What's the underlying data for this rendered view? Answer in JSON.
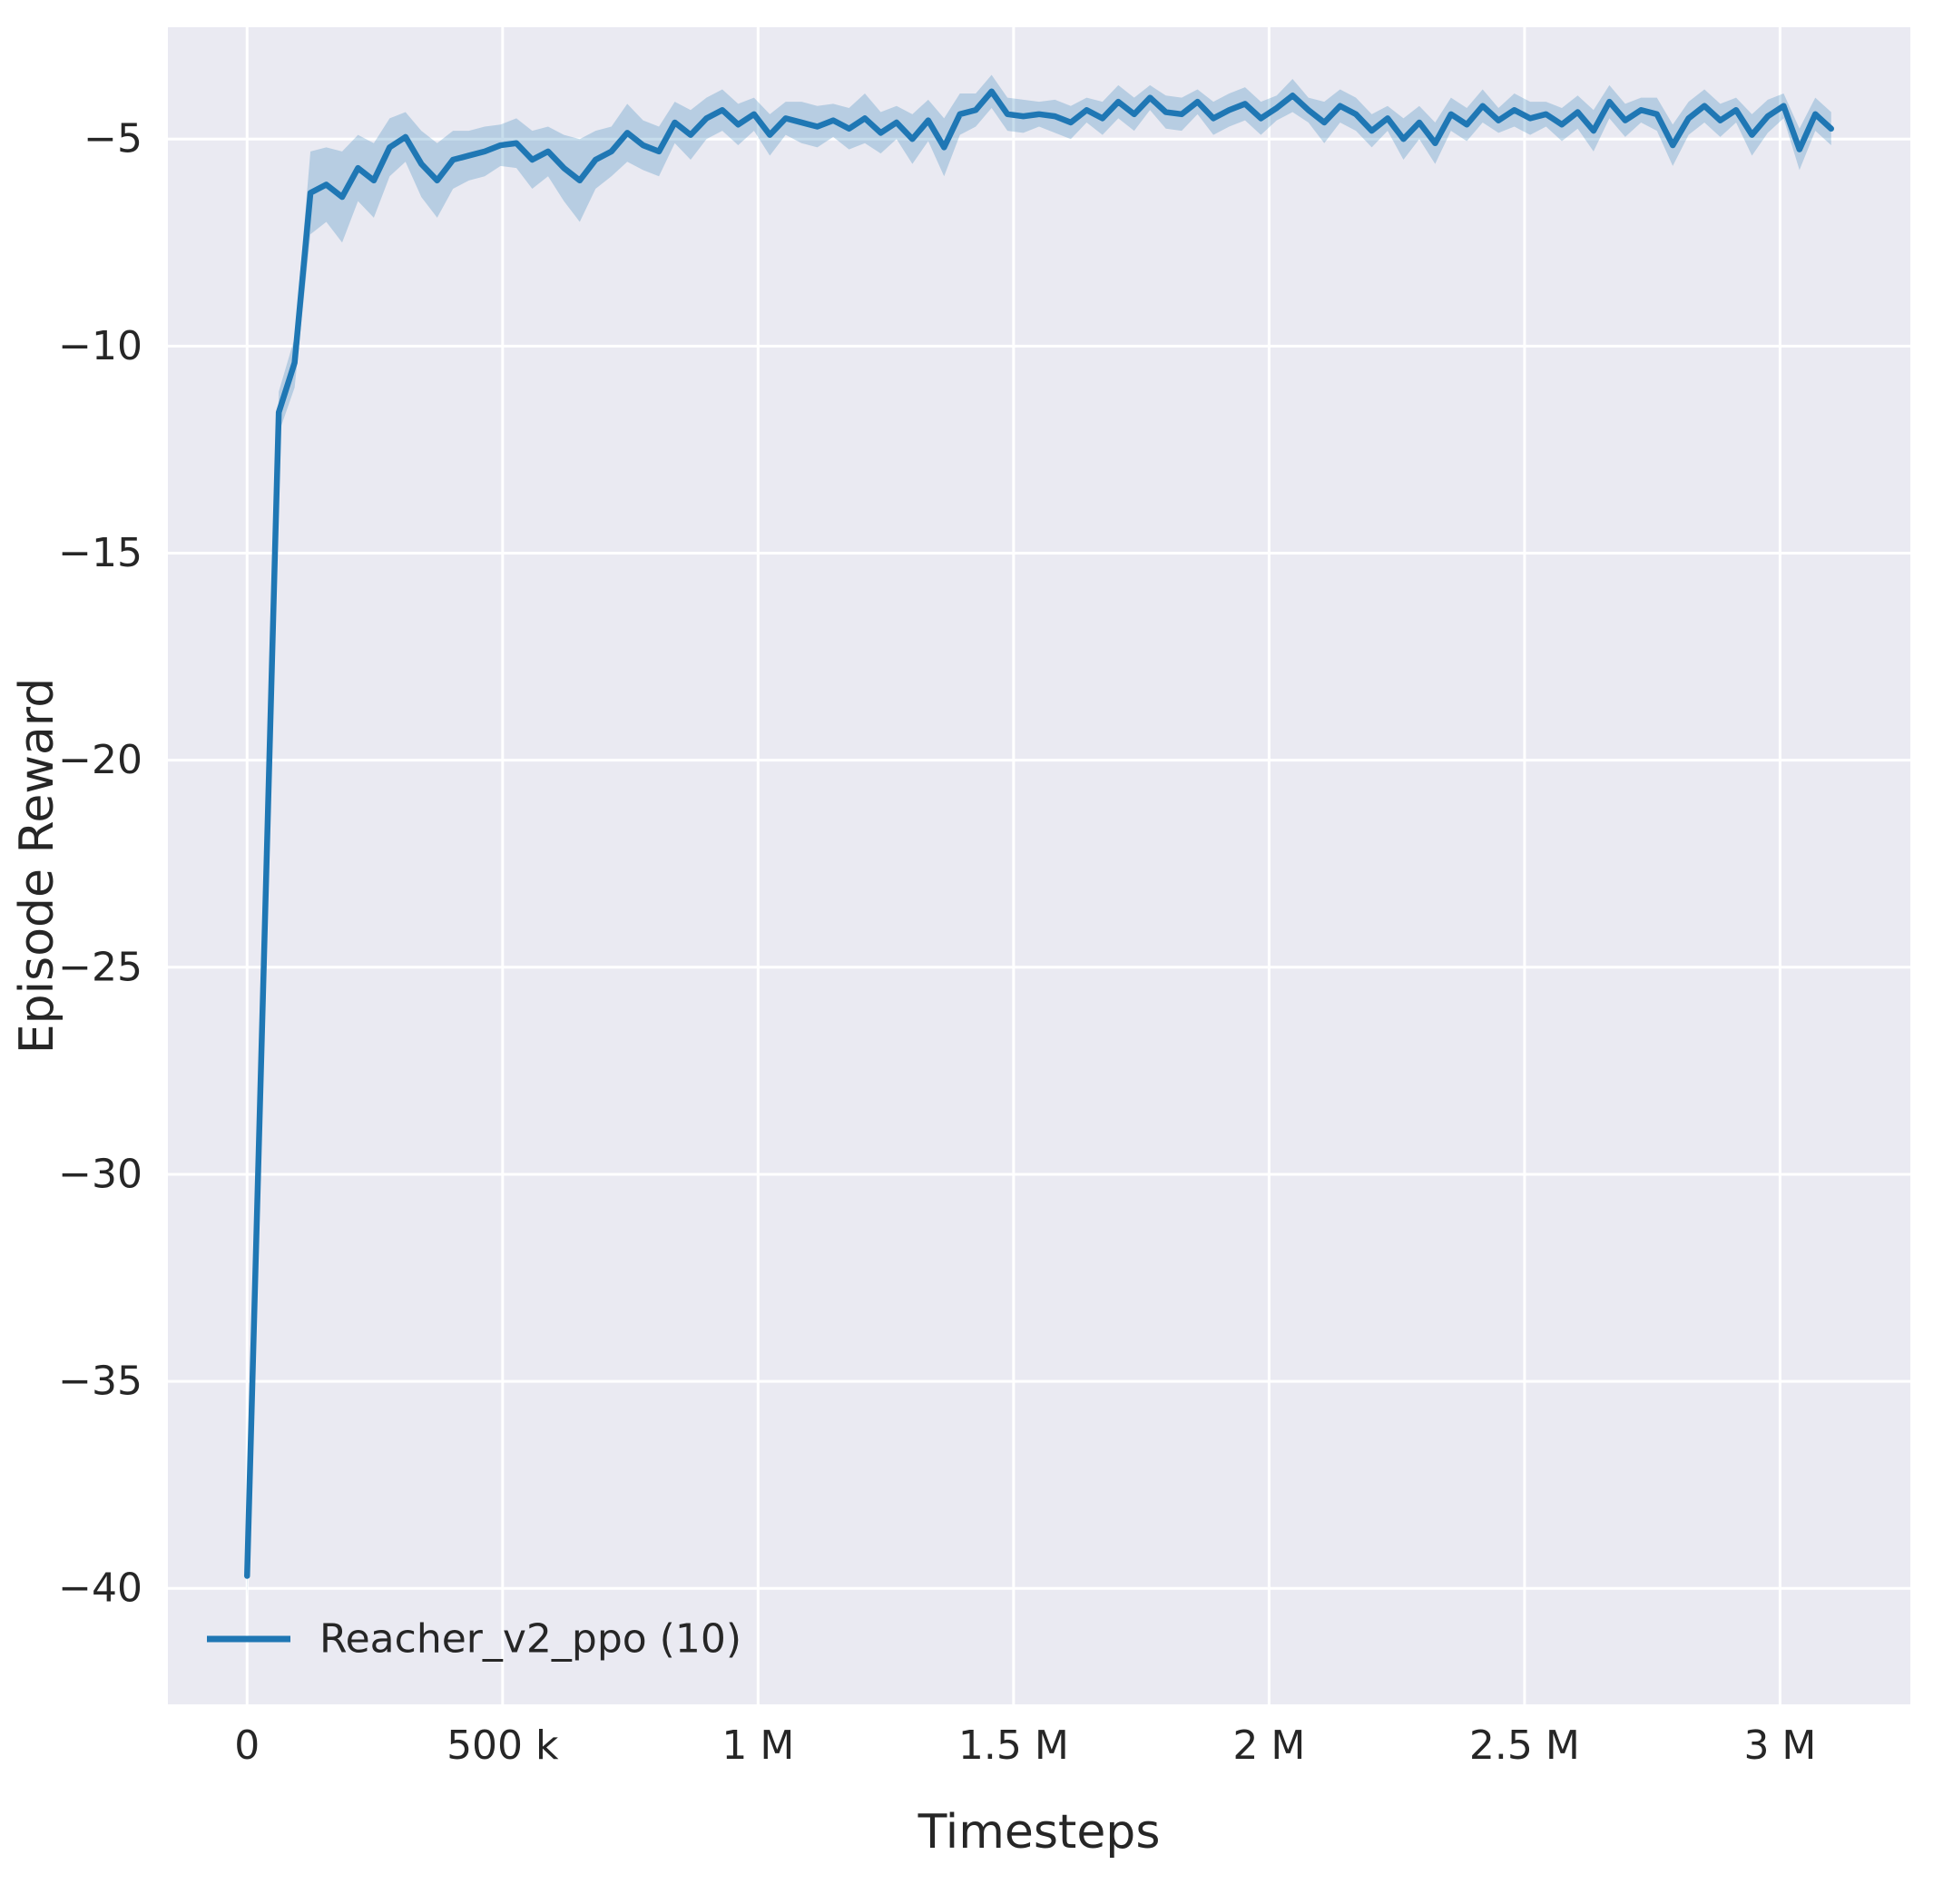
{
  "figure": {
    "background": "#ffffff",
    "axes_background": "#eaeaf2",
    "grid_color": "#ffffff",
    "text_color": "#262626"
  },
  "chart_data": {
    "type": "line",
    "title": "",
    "xlabel": "Timesteps",
    "ylabel": "Episode Reward",
    "grid": true,
    "legend_position": "lower left",
    "xlim": [
      -155000,
      3255000
    ],
    "ylim": [
      -42.8,
      -2.3
    ],
    "xticks": {
      "values": [
        0,
        500000,
        1000000,
        1500000,
        2000000,
        2500000,
        3000000
      ],
      "labels": [
        "0",
        "500 k",
        "1 M",
        "1.5 M",
        "2 M",
        "2.5 M",
        "3 M"
      ]
    },
    "yticks": {
      "values": [
        -5,
        -10,
        -15,
        -20,
        -25,
        -30,
        -35,
        -40
      ],
      "labels": [
        "−5",
        "−10",
        "−15",
        "−20",
        "−25",
        "−30",
        "−35",
        "−40"
      ]
    },
    "legend": [
      {
        "label": "Reacher_v2_ppo (10)",
        "color": "#1f77b4"
      }
    ],
    "series": [
      {
        "name": "Reacher_v2_ppo (10)",
        "color": "#1f77b4",
        "band_alpha": 0.25,
        "x": [
          0,
          31000,
          62000,
          93000,
          124000,
          155000,
          186000,
          217000,
          248000,
          279000,
          310000,
          341000,
          372000,
          403000,
          434000,
          465000,
          496000,
          527000,
          558000,
          589000,
          620000,
          651000,
          682000,
          713000,
          744000,
          775000,
          806000,
          837000,
          868000,
          899000,
          930000,
          961000,
          992000,
          1023000,
          1054000,
          1085000,
          1116000,
          1147000,
          1178000,
          1209000,
          1240000,
          1271000,
          1302000,
          1333000,
          1364000,
          1395000,
          1426000,
          1457000,
          1488000,
          1519000,
          1550000,
          1581000,
          1612000,
          1643000,
          1674000,
          1705000,
          1736000,
          1767000,
          1798000,
          1829000,
          1860000,
          1891000,
          1922000,
          1953000,
          1984000,
          2015000,
          2046000,
          2077000,
          2108000,
          2139000,
          2170000,
          2201000,
          2232000,
          2263000,
          2294000,
          2325000,
          2356000,
          2387000,
          2418000,
          2449000,
          2480000,
          2511000,
          2542000,
          2573000,
          2604000,
          2635000,
          2666000,
          2697000,
          2728000,
          2759000,
          2790000,
          2821000,
          2852000,
          2883000,
          2914000,
          2945000,
          2976000,
          3007000,
          3038000,
          3069000,
          3100000
        ],
        "y": [
          -39.7,
          -25.7,
          -11.6,
          -10.4,
          -6.3,
          -6.1,
          -6.4,
          -5.7,
          -6.0,
          -5.2,
          -4.95,
          -5.6,
          -6.0,
          -5.5,
          -5.4,
          -5.3,
          -5.15,
          -5.1,
          -5.5,
          -5.3,
          -5.7,
          -6.0,
          -5.5,
          -5.3,
          -4.85,
          -5.15,
          -5.3,
          -4.6,
          -4.9,
          -4.5,
          -4.3,
          -4.65,
          -4.4,
          -4.9,
          -4.5,
          -4.6,
          -4.7,
          -4.55,
          -4.75,
          -4.5,
          -4.85,
          -4.6,
          -5.0,
          -4.55,
          -5.2,
          -4.4,
          -4.3,
          -3.85,
          -4.4,
          -4.45,
          -4.4,
          -4.45,
          -4.6,
          -4.3,
          -4.5,
          -4.1,
          -4.4,
          -4.0,
          -4.35,
          -4.4,
          -4.1,
          -4.5,
          -4.3,
          -4.15,
          -4.5,
          -4.25,
          -3.95,
          -4.3,
          -4.6,
          -4.2,
          -4.4,
          -4.8,
          -4.5,
          -5.0,
          -4.6,
          -5.1,
          -4.4,
          -4.65,
          -4.2,
          -4.55,
          -4.3,
          -4.5,
          -4.4,
          -4.65,
          -4.35,
          -4.8,
          -4.1,
          -4.55,
          -4.3,
          -4.4,
          -5.15,
          -4.5,
          -4.2,
          -4.55,
          -4.3,
          -4.9,
          -4.45,
          -4.2,
          -5.25,
          -4.4,
          -4.75
        ],
        "ci": [
          0.5,
          0.4,
          0.5,
          0.6,
          1.0,
          0.9,
          1.1,
          0.8,
          0.9,
          0.7,
          0.6,
          0.8,
          0.9,
          0.7,
          0.6,
          0.6,
          0.5,
          0.6,
          0.7,
          0.6,
          0.8,
          1.0,
          0.7,
          0.6,
          0.7,
          0.6,
          0.6,
          0.5,
          0.6,
          0.5,
          0.5,
          0.5,
          0.4,
          0.5,
          0.4,
          0.5,
          0.5,
          0.4,
          0.5,
          0.6,
          0.5,
          0.4,
          0.6,
          0.5,
          0.7,
          0.5,
          0.4,
          0.4,
          0.4,
          0.4,
          0.3,
          0.4,
          0.4,
          0.3,
          0.4,
          0.4,
          0.4,
          0.3,
          0.4,
          0.4,
          0.3,
          0.4,
          0.4,
          0.4,
          0.4,
          0.3,
          0.4,
          0.3,
          0.5,
          0.4,
          0.4,
          0.4,
          0.3,
          0.5,
          0.4,
          0.5,
          0.4,
          0.4,
          0.4,
          0.3,
          0.4,
          0.4,
          0.3,
          0.4,
          0.4,
          0.5,
          0.4,
          0.4,
          0.3,
          0.4,
          0.5,
          0.4,
          0.4,
          0.4,
          0.3,
          0.5,
          0.4,
          0.3,
          0.5,
          0.4,
          0.4
        ]
      }
    ]
  }
}
